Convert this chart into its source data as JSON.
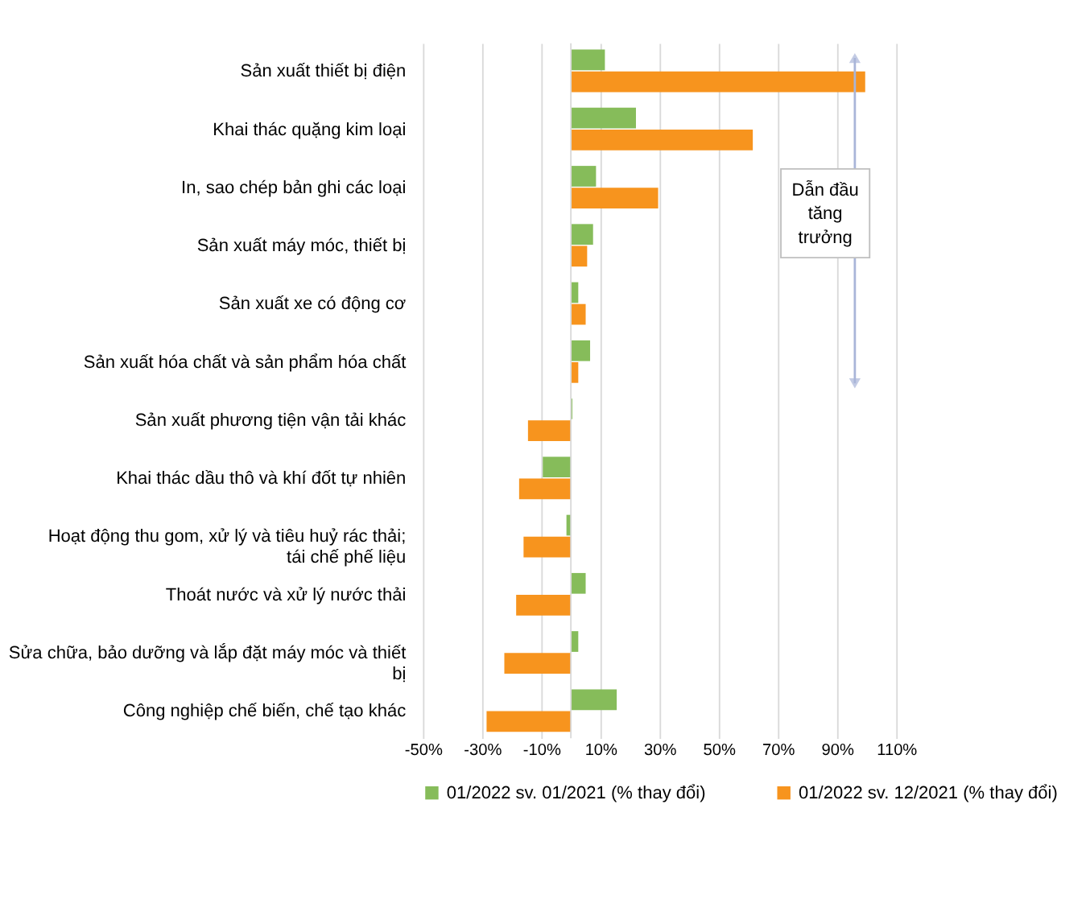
{
  "chart_data": {
    "type": "bar",
    "orientation": "horizontal",
    "categories": [
      "Sản xuất thiết bị điện",
      "Khai thác quặng kim loại",
      "In, sao chép bản ghi các loại",
      "Sản xuất máy móc, thiết bị",
      "Sản xuất xe có động cơ",
      "Sản xuất hóa chất và sản phẩm hóa chất",
      "Sản xuất phương tiện vận tải khác",
      "Khai thác dầu thô và khí đốt tự nhiên",
      "Hoạt động thu gom, xử lý và tiêu huỷ rác thải; tái chế phế liệu",
      "Thoát nước và xử lý nước thải",
      "Sửa chữa, bảo dưỡng và lắp đặt máy móc và thiết bị",
      "Công nghiệp chế biến, chế tạo khác"
    ],
    "series": [
      {
        "name": "01/2022  sv. 01/2021  (% thay đổi)",
        "color": "#86bc5a",
        "values": [
          11.5,
          22,
          8.5,
          7.5,
          2.5,
          6.5,
          0.5,
          -9.5,
          -1.5,
          5,
          2.5,
          15.5
        ]
      },
      {
        "name": "01/2022  sv. 12/2021  (% thay đổi)",
        "color": "#f7941e",
        "values": [
          99.5,
          61.5,
          29.5,
          5.5,
          5,
          2.5,
          -14.5,
          -17.5,
          -16,
          -18.5,
          -22.5,
          -28.5
        ]
      }
    ],
    "xlim": [
      -50,
      110
    ],
    "xticks": [
      {
        "value": -50,
        "label": "-50%"
      },
      {
        "value": -30,
        "label": "-30%"
      },
      {
        "value": -10,
        "label": "-10%"
      },
      {
        "value": 10,
        "label": "10%"
      },
      {
        "value": 30,
        "label": "30%"
      },
      {
        "value": 50,
        "label": "50%"
      },
      {
        "value": 70,
        "label": "70%"
      },
      {
        "value": 90,
        "label": "90%"
      },
      {
        "value": 110,
        "label": "110%"
      }
    ],
    "grid": "x",
    "legend": "bottom",
    "annotations": [
      "Dẫn đầu tăng trưởng"
    ]
  }
}
